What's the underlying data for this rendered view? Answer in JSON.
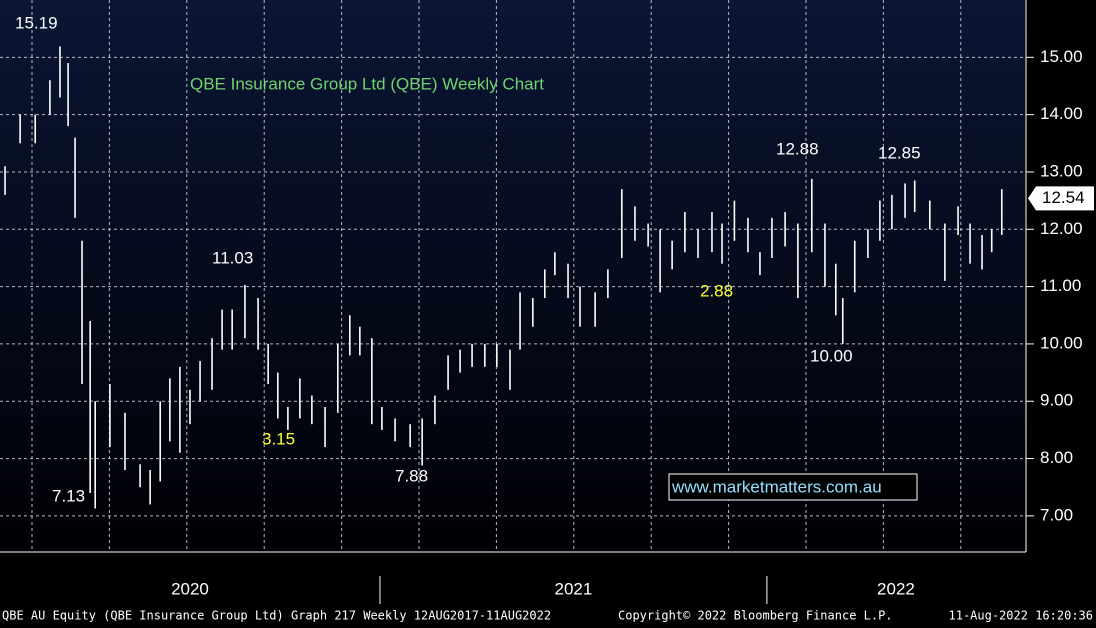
{
  "chart_data": {
    "type": "hilo",
    "title": "QBE Insurance Group Ltd (QBE) Weekly Chart",
    "x": [
      2020.031,
      2020.07,
      2020.109,
      2020.147,
      2020.173,
      2020.194,
      2020.212,
      2020.23,
      2020.251,
      2020.264,
      2020.302,
      2020.341,
      2020.38,
      2020.406,
      2020.432,
      2020.457,
      2020.483,
      2020.509,
      2020.535,
      2020.566,
      2020.592,
      2020.618,
      2020.651,
      2020.685,
      2020.711,
      2020.736,
      2020.762,
      2020.793,
      2020.824,
      2020.858,
      2020.891,
      2020.922,
      2020.948,
      2020.979,
      2021.005,
      2021.039,
      2021.078,
      2021.109,
      2021.142,
      2021.176,
      2021.207,
      2021.238,
      2021.271,
      2021.302,
      2021.336,
      2021.362,
      2021.395,
      2021.426,
      2021.452,
      2021.486,
      2021.517,
      2021.556,
      2021.589,
      2021.625,
      2021.659,
      2021.693,
      2021.724,
      2021.755,
      2021.788,
      2021.822,
      2021.858,
      2021.884,
      2021.916,
      2021.951,
      2021.982,
      2022.013,
      2022.047,
      2022.08,
      2022.116,
      2022.15,
      2022.178,
      2022.196,
      2022.227,
      2022.261,
      2022.292,
      2022.323,
      2022.357,
      2022.382,
      2022.421,
      2022.46,
      2022.494,
      2022.525,
      2022.556,
      2022.581,
      2022.607
    ],
    "series": [
      {
        "name": "High",
        "color": "#ffffff",
        "values": [
          13.1,
          14.0,
          14.0,
          14.6,
          15.19,
          14.9,
          13.6,
          11.8,
          10.4,
          9.0,
          9.3,
          8.8,
          7.9,
          7.8,
          9.0,
          9.4,
          9.6,
          9.2,
          9.7,
          10.1,
          10.6,
          10.6,
          11.03,
          10.8,
          10.0,
          9.5,
          8.9,
          9.4,
          9.1,
          8.9,
          10.0,
          10.5,
          10.3,
          10.1,
          8.9,
          8.7,
          8.6,
          8.7,
          9.1,
          9.8,
          9.9,
          10.0,
          10.0,
          10.0,
          9.9,
          10.9,
          10.8,
          11.3,
          11.6,
          11.4,
          11.0,
          10.9,
          11.3,
          12.7,
          12.4,
          12.1,
          12.0,
          11.8,
          12.3,
          12.0,
          12.3,
          12.1,
          12.5,
          12.2,
          11.6,
          12.2,
          12.3,
          12.1,
          12.88,
          12.1,
          11.4,
          10.8,
          11.8,
          12.0,
          12.5,
          12.6,
          12.8,
          12.85,
          12.5,
          12.1,
          12.4,
          12.1,
          11.9,
          12.0,
          12.7
        ]
      },
      {
        "name": "Low",
        "color": "#ffffff",
        "values": [
          12.6,
          13.5,
          13.5,
          14.0,
          14.3,
          13.8,
          12.2,
          9.3,
          7.4,
          7.13,
          8.2,
          7.8,
          7.5,
          7.2,
          7.6,
          8.3,
          8.1,
          8.6,
          9.0,
          9.2,
          9.9,
          9.9,
          10.1,
          9.9,
          9.3,
          8.7,
          8.5,
          8.7,
          8.6,
          8.2,
          8.8,
          9.8,
          9.8,
          8.6,
          8.5,
          8.3,
          8.2,
          7.88,
          8.6,
          9.2,
          9.5,
          9.6,
          9.6,
          9.6,
          9.2,
          9.9,
          10.3,
          10.8,
          11.2,
          10.8,
          10.3,
          10.3,
          10.8,
          11.5,
          11.8,
          11.7,
          10.9,
          11.3,
          11.6,
          11.5,
          11.6,
          11.4,
          11.8,
          11.6,
          11.2,
          11.5,
          11.7,
          10.8,
          11.6,
          11.0,
          10.5,
          10.0,
          10.9,
          11.5,
          11.8,
          12.0,
          12.2,
          12.3,
          12.0,
          11.1,
          11.9,
          11.4,
          11.3,
          11.6,
          11.9
        ]
      }
    ],
    "last_price": 12.54,
    "annotations": [
      "15.19",
      "7.13",
      "11.03",
      "3.15",
      "7.88",
      "2.88",
      "12.88",
      "10.00",
      "12.85"
    ],
    "watermark": "www.marketmatters.com.au",
    "footer": [
      "QBE AU Equity (QBE Insurance Group Ltd) Graph 217  Weekly 12AUG2017-11AUG2022",
      "Copyright© 2022 Bloomberg Finance L.P.",
      "11-Aug-2022 16:20:36"
    ],
    "xlim": [
      2020.018,
      2022.667
    ],
    "xticks": [
      {
        "value": 2020,
        "label": "2020"
      },
      {
        "value": 2021,
        "label": "2021"
      },
      {
        "value": 2022,
        "label": "2022"
      }
    ],
    "ylim": [
      6.37,
      16.0
    ],
    "yticks": [
      {
        "value": 7,
        "label": "7.00"
      },
      {
        "value": 8,
        "label": "8.00"
      },
      {
        "value": 9,
        "label": "9.00"
      },
      {
        "value": 10,
        "label": "10.00"
      },
      {
        "value": 11,
        "label": "11.00"
      },
      {
        "value": 12,
        "label": "12.00"
      },
      {
        "value": 13,
        "label": "13.00"
      },
      {
        "value": 14,
        "label": "14.00"
      },
      {
        "value": 15,
        "label": "15.00"
      }
    ],
    "grid": true
  }
}
